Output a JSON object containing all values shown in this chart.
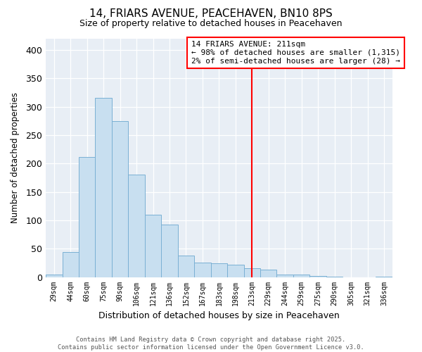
{
  "title": "14, FRIARS AVENUE, PEACEHAVEN, BN10 8PS",
  "subtitle": "Size of property relative to detached houses in Peacehaven",
  "xlabel": "Distribution of detached houses by size in Peacehaven",
  "ylabel": "Number of detached properties",
  "bin_labels": [
    "29sqm",
    "44sqm",
    "60sqm",
    "75sqm",
    "90sqm",
    "106sqm",
    "121sqm",
    "136sqm",
    "152sqm",
    "167sqm",
    "183sqm",
    "198sqm",
    "213sqm",
    "229sqm",
    "244sqm",
    "259sqm",
    "275sqm",
    "290sqm",
    "305sqm",
    "321sqm",
    "336sqm"
  ],
  "bar_heights": [
    5,
    44,
    211,
    316,
    275,
    180,
    110,
    93,
    38,
    25,
    24,
    22,
    15,
    13,
    5,
    5,
    2,
    1,
    0,
    0,
    1
  ],
  "bar_color": "#c8dff0",
  "bar_edge_color": "#7ab0d4",
  "vline_color": "red",
  "vline_x_idx": 12,
  "annotation_title": "14 FRIARS AVENUE: 211sqm",
  "annotation_line1": "← 98% of detached houses are smaller (1,315)",
  "annotation_line2": "2% of semi-detached houses are larger (28) →",
  "ylim": [
    0,
    420
  ],
  "yticks": [
    0,
    50,
    100,
    150,
    200,
    250,
    300,
    350,
    400
  ],
  "footer1": "Contains HM Land Registry data © Crown copyright and database right 2025.",
  "footer2": "Contains public sector information licensed under the Open Government Licence v3.0.",
  "plot_bg_color": "#e8eef5",
  "fig_bg_color": "#ffffff"
}
